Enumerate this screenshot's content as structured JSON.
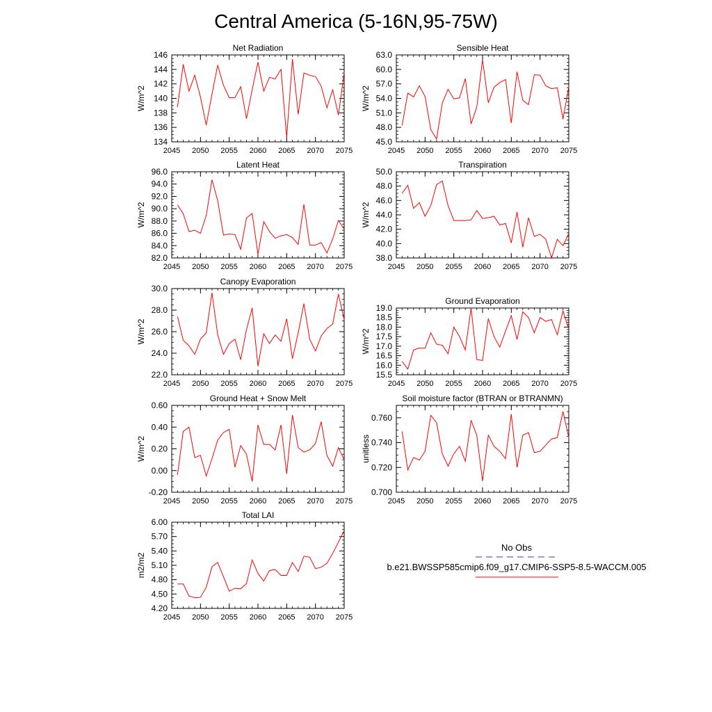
{
  "page_title": "Central America (5-16N,95-75W)",
  "legend": {
    "obs_label": "No Obs",
    "model_label": "b.e21.BWSSP585cmip6.f09_g17.CMIP6-SSP5-8.5-WACCM.005",
    "obs_color": "#3b3b9a",
    "model_color": "#ff0000"
  },
  "chart_data": [
    {
      "type": "line",
      "title": "Net Radiation",
      "ylabel": "W/m^2",
      "x": [
        2046,
        2047,
        2048,
        2049,
        2050,
        2051,
        2052,
        2053,
        2054,
        2055,
        2056,
        2057,
        2058,
        2059,
        2060,
        2061,
        2062,
        2063,
        2064,
        2065,
        2066,
        2067,
        2068,
        2069,
        2070,
        2071,
        2072,
        2073,
        2074,
        2075
      ],
      "values": [
        138.8,
        144.7,
        141.0,
        143.2,
        140.2,
        136.3,
        140.6,
        144.6,
        141.8,
        140.1,
        140.1,
        141.6,
        137.2,
        141.2,
        145.0,
        141.0,
        142.9,
        142.7,
        144.0,
        134.6,
        145.4,
        137.8,
        143.5,
        143.2,
        143.0,
        141.7,
        138.7,
        141.2,
        137.7,
        143.6
      ],
      "xlim": [
        2045,
        2075
      ],
      "ylim": [
        134,
        146
      ],
      "yticks": [
        134,
        136,
        138,
        140,
        142,
        144,
        146
      ],
      "ytick_labels": [
        "134",
        "136",
        "138",
        "140",
        "142",
        "144",
        "146"
      ],
      "xticks": [
        2045,
        2050,
        2055,
        2060,
        2065,
        2070,
        2075
      ],
      "xtick_labels": [
        "2045",
        "2050",
        "2055",
        "2060",
        "2065",
        "2070",
        "2075"
      ]
    },
    {
      "type": "line",
      "title": "Sensible Heat",
      "ylabel": "W/m^2",
      "x": [
        2046,
        2047,
        2048,
        2049,
        2050,
        2051,
        2052,
        2053,
        2054,
        2055,
        2056,
        2057,
        2058,
        2059,
        2060,
        2061,
        2062,
        2063,
        2064,
        2065,
        2066,
        2067,
        2068,
        2069,
        2070,
        2071,
        2072,
        2073,
        2074,
        2075
      ],
      "values": [
        48.4,
        55.1,
        54.3,
        56.6,
        54.4,
        47.5,
        45.6,
        53.0,
        55.9,
        53.9,
        54.1,
        58.1,
        48.7,
        52.2,
        62.0,
        53.1,
        56.3,
        57.3,
        57.9,
        48.9,
        59.5,
        53.6,
        52.7,
        58.9,
        58.8,
        56.6,
        56.0,
        56.2,
        49.7,
        56.4
      ],
      "xlim": [
        2045,
        2075
      ],
      "ylim": [
        45,
        63
      ],
      "yticks": [
        45,
        48,
        51,
        54,
        57,
        60,
        63
      ],
      "ytick_labels": [
        "45.0",
        "48.0",
        "51.0",
        "54.0",
        "57.0",
        "60.0",
        "63.0"
      ],
      "xticks": [
        2045,
        2050,
        2055,
        2060,
        2065,
        2070,
        2075
      ],
      "xtick_labels": [
        "2045",
        "2050",
        "2055",
        "2060",
        "2065",
        "2070",
        "2075"
      ]
    },
    {
      "type": "line",
      "title": "Latent Heat",
      "ylabel": "W/m^2",
      "x": [
        2046,
        2047,
        2048,
        2049,
        2050,
        2051,
        2052,
        2053,
        2054,
        2055,
        2056,
        2057,
        2058,
        2059,
        2060,
        2061,
        2062,
        2063,
        2064,
        2065,
        2066,
        2067,
        2068,
        2069,
        2070,
        2071,
        2072,
        2073,
        2074,
        2075
      ],
      "values": [
        90.6,
        89.2,
        86.3,
        86.5,
        86.0,
        88.9,
        94.7,
        91.3,
        85.7,
        85.9,
        85.8,
        83.4,
        88.5,
        89.2,
        82.6,
        87.9,
        86.3,
        85.2,
        85.6,
        85.8,
        85.3,
        84.2,
        90.7,
        84.1,
        84.1,
        84.5,
        82.8,
        85.1,
        88.1,
        86.7
      ],
      "xlim": [
        2045,
        2075
      ],
      "ylim": [
        82,
        96
      ],
      "yticks": [
        82,
        84,
        86,
        88,
        90,
        92,
        94,
        96
      ],
      "ytick_labels": [
        "82.0",
        "84.0",
        "86.0",
        "88.0",
        "90.0",
        "92.0",
        "94.0",
        "96.0"
      ],
      "xticks": [
        2045,
        2050,
        2055,
        2060,
        2065,
        2070,
        2075
      ],
      "xtick_labels": [
        "2045",
        "2050",
        "2055",
        "2060",
        "2065",
        "2070",
        "2075"
      ]
    },
    {
      "type": "line",
      "title": "Transpiration",
      "ylabel": "W/m^2",
      "x": [
        2046,
        2047,
        2048,
        2049,
        2050,
        2051,
        2052,
        2053,
        2054,
        2055,
        2056,
        2057,
        2058,
        2059,
        2060,
        2061,
        2062,
        2063,
        2064,
        2065,
        2066,
        2067,
        2068,
        2069,
        2070,
        2071,
        2072,
        2073,
        2074,
        2075
      ],
      "values": [
        47.0,
        48.1,
        44.9,
        45.7,
        43.8,
        45.3,
        48.2,
        48.7,
        45.3,
        43.2,
        43.2,
        43.2,
        43.3,
        44.6,
        43.5,
        43.6,
        43.8,
        42.6,
        42.8,
        40.1,
        44.4,
        39.5,
        43.6,
        41.0,
        41.3,
        40.6,
        38.0,
        40.6,
        39.7,
        41.4
      ],
      "xlim": [
        2045,
        2075
      ],
      "ylim": [
        38,
        50
      ],
      "yticks": [
        38,
        40,
        42,
        44,
        46,
        48,
        50
      ],
      "ytick_labels": [
        "38.0",
        "40.0",
        "42.0",
        "44.0",
        "46.0",
        "48.0",
        "50.0"
      ],
      "xticks": [
        2045,
        2050,
        2055,
        2060,
        2065,
        2070,
        2075
      ],
      "xtick_labels": [
        "2045",
        "2050",
        "2055",
        "2060",
        "2065",
        "2070",
        "2075"
      ]
    },
    {
      "type": "line",
      "title": "Canopy Evaporation",
      "ylabel": "W/m^2",
      "x": [
        2046,
        2047,
        2048,
        2049,
        2050,
        2051,
        2052,
        2053,
        2054,
        2055,
        2056,
        2057,
        2058,
        2059,
        2060,
        2061,
        2062,
        2063,
        2064,
        2065,
        2066,
        2067,
        2068,
        2069,
        2070,
        2071,
        2072,
        2073,
        2074,
        2075
      ],
      "values": [
        27.4,
        25.2,
        24.7,
        23.9,
        25.3,
        25.9,
        29.6,
        25.7,
        23.9,
        24.9,
        25.3,
        23.4,
        26.2,
        28.2,
        22.8,
        25.8,
        24.9,
        25.7,
        25.1,
        27.2,
        23.5,
        25.9,
        28.6,
        25.3,
        24.2,
        25.6,
        26.3,
        26.7,
        29.5,
        27.1
      ],
      "xlim": [
        2045,
        2075
      ],
      "ylim": [
        22,
        30
      ],
      "yticks": [
        22,
        24,
        26,
        28,
        30
      ],
      "ytick_labels": [
        "22.0",
        "24.0",
        "26.0",
        "28.0",
        "30.0"
      ],
      "xticks": [
        2045,
        2050,
        2055,
        2060,
        2065,
        2070,
        2075
      ],
      "xtick_labels": [
        "2045",
        "2050",
        "2055",
        "2060",
        "2065",
        "2070",
        "2075"
      ]
    },
    {
      "type": "line",
      "title": "Ground Evaporation",
      "ylabel": "W/m^2",
      "x": [
        2046,
        2047,
        2048,
        2049,
        2050,
        2051,
        2052,
        2053,
        2054,
        2055,
        2056,
        2057,
        2058,
        2059,
        2060,
        2061,
        2062,
        2063,
        2064,
        2065,
        2066,
        2067,
        2068,
        2069,
        2070,
        2071,
        2072,
        2073,
        2074,
        2075
      ],
      "values": [
        16.2,
        15.8,
        16.8,
        16.9,
        16.9,
        17.7,
        17.1,
        17.05,
        16.6,
        18.0,
        17.5,
        16.8,
        19.0,
        16.3,
        16.25,
        18.45,
        17.5,
        16.95,
        17.8,
        18.6,
        17.35,
        18.8,
        18.5,
        17.7,
        18.5,
        18.3,
        18.4,
        17.6,
        18.85,
        17.9
      ],
      "xlim": [
        2045,
        2075
      ],
      "ylim": [
        15.5,
        19
      ],
      "yticks": [
        15.5,
        16,
        16.5,
        17,
        17.5,
        18,
        18.5,
        19
      ],
      "ytick_labels": [
        "15.5",
        "16.0",
        "16.5",
        "17.0",
        "17.5",
        "18.0",
        "18.5",
        "19.0"
      ],
      "xticks": [
        2045,
        2050,
        2055,
        2060,
        2065,
        2070,
        2075
      ],
      "xtick_labels": [
        "2045",
        "2050",
        "2055",
        "2060",
        "2065",
        "2070",
        "2075"
      ]
    },
    {
      "type": "line",
      "title": "Ground Heat + Snow Melt",
      "ylabel": "W/m^2",
      "x": [
        2046,
        2047,
        2048,
        2049,
        2050,
        2051,
        2052,
        2053,
        2054,
        2055,
        2056,
        2057,
        2058,
        2059,
        2060,
        2061,
        2062,
        2063,
        2064,
        2065,
        2066,
        2067,
        2068,
        2069,
        2070,
        2071,
        2072,
        2073,
        2074,
        2075
      ],
      "values": [
        -0.04,
        0.36,
        0.4,
        0.12,
        0.14,
        -0.05,
        0.11,
        0.28,
        0.35,
        0.38,
        0.03,
        0.23,
        0.15,
        -0.1,
        0.42,
        0.24,
        0.24,
        0.19,
        0.42,
        -0.03,
        0.51,
        0.21,
        0.17,
        0.19,
        0.25,
        0.45,
        0.14,
        0.04,
        0.21,
        0.1
      ],
      "xlim": [
        2045,
        2075
      ],
      "ylim": [
        -0.2,
        0.6
      ],
      "yticks": [
        -0.2,
        0,
        0.2,
        0.4,
        0.6
      ],
      "ytick_labels": [
        "-0.20",
        "0.00",
        "0.20",
        "0.40",
        "0.60"
      ],
      "xticks": [
        2045,
        2050,
        2055,
        2060,
        2065,
        2070,
        2075
      ],
      "xtick_labels": [
        "2045",
        "2050",
        "2055",
        "2060",
        "2065",
        "2070",
        "2075"
      ]
    },
    {
      "type": "line",
      "title": "Soil moisture factor (BTRAN or BTRANMN)",
      "ylabel": "unitless",
      "x": [
        2046,
        2047,
        2048,
        2049,
        2050,
        2051,
        2052,
        2053,
        2054,
        2055,
        2056,
        2057,
        2058,
        2059,
        2060,
        2061,
        2062,
        2063,
        2064,
        2065,
        2066,
        2067,
        2068,
        2069,
        2070,
        2071,
        2072,
        2073,
        2074,
        2075
      ],
      "values": [
        0.749,
        0.718,
        0.728,
        0.726,
        0.733,
        0.762,
        0.756,
        0.731,
        0.721,
        0.731,
        0.737,
        0.725,
        0.758,
        0.746,
        0.709,
        0.746,
        0.737,
        0.733,
        0.727,
        0.763,
        0.72,
        0.746,
        0.748,
        0.732,
        0.733,
        0.738,
        0.743,
        0.744,
        0.765,
        0.744
      ],
      "xlim": [
        2045,
        2075
      ],
      "ylim": [
        0.7,
        0.77
      ],
      "yticks": [
        0.7,
        0.72,
        0.74,
        0.76
      ],
      "ytick_labels": [
        "0.700",
        "0.720",
        "0.740",
        "0.760"
      ],
      "xticks": [
        2045,
        2050,
        2055,
        2060,
        2065,
        2070,
        2075
      ],
      "xtick_labels": [
        "2045",
        "2050",
        "2055",
        "2060",
        "2065",
        "2070",
        "2075"
      ]
    },
    {
      "type": "line",
      "title": "Total LAI",
      "ylabel": "m2/m2",
      "x": [
        2046,
        2047,
        2048,
        2049,
        2050,
        2051,
        2052,
        2053,
        2054,
        2055,
        2056,
        2057,
        2058,
        2059,
        2060,
        2061,
        2062,
        2063,
        2064,
        2065,
        2066,
        2067,
        2068,
        2069,
        2070,
        2071,
        2072,
        2073,
        2074,
        2075
      ],
      "values": [
        4.71,
        4.71,
        4.46,
        4.42,
        4.43,
        4.64,
        5.07,
        5.16,
        4.86,
        4.56,
        4.62,
        4.61,
        4.72,
        5.21,
        4.93,
        4.77,
        4.99,
        5.01,
        4.89,
        4.89,
        5.16,
        4.97,
        5.29,
        5.27,
        5.03,
        5.06,
        5.14,
        5.35,
        5.58,
        5.82
      ],
      "xlim": [
        2045,
        2075
      ],
      "ylim": [
        4.2,
        6
      ],
      "yticks": [
        4.2,
        4.5,
        4.8,
        5.1,
        5.4,
        5.7,
        6
      ],
      "ytick_labels": [
        "4.20",
        "4.50",
        "4.80",
        "5.10",
        "5.40",
        "5.70",
        "6.00"
      ],
      "xticks": [
        2045,
        2050,
        2055,
        2060,
        2065,
        2070,
        2075
      ],
      "xtick_labels": [
        "2045",
        "2050",
        "2055",
        "2060",
        "2065",
        "2070",
        "2075"
      ]
    }
  ]
}
